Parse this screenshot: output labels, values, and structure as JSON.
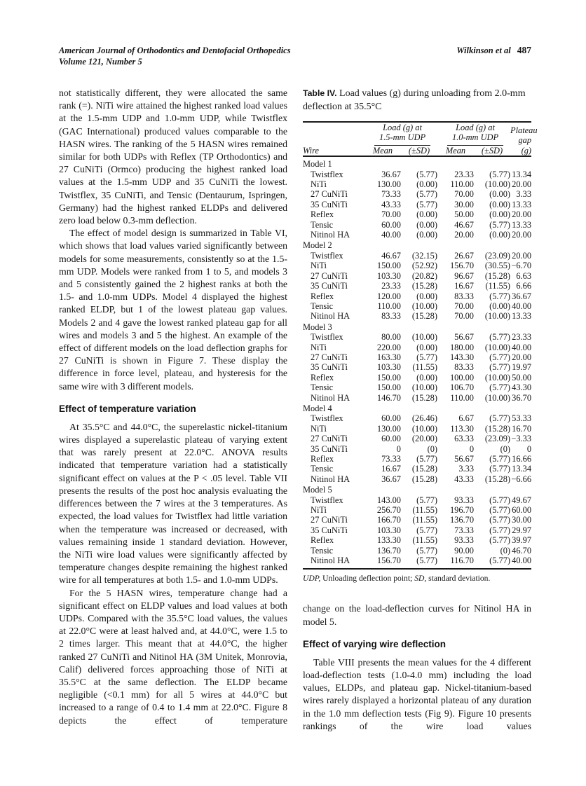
{
  "header": {
    "journal": "American Journal of Orthodontics and Dentofacial Orthopedics",
    "volume": "Volume 121, Number 5",
    "author": "Wilkinson et al",
    "page_number": "487"
  },
  "left_column": {
    "heading": "Effect of temperature variation",
    "paragraphs": [
      {
        "text": "not statistically different, they were allocated the same rank (=). NiTi wire attained the highest ranked load values at the 1.5-mm UDP and 1.0-mm UDP, while Twistflex (GAC International) produced values comparable to the HASN wires. The ranking of the 5 HASN wires remained similar for both UDPs with Reflex (TP Orthodontics) and 27 CuNiTi (Ormco) producing the highest ranked load values at the 1.5-mm UDP and 35 CuNiTi the lowest. Twistflex, 35 CuNiTi, and Tensic (Dentaurum, Ispringen, Germany) had the highest ranked ELDPs and delivered zero load below 0.3-mm deflection."
      },
      {
        "text": "The effect of model design is summarized in Table VI, which shows that load values varied significantly between models for some measurements, consistently so at the 1.5-mm UDP. Models were ranked from 1 to 5, and models 3 and 5 consistently gained the 2 highest ranks at both the 1.5- and 1.0-mm UDPs. Model 4 displayed the highest ranked ELDP, but 1 of the lowest plateau gap values. Models 2 and 4 gave the lowest ranked plateau gap for all wires and models 3 and 5 the highest. An example of the effect of different models on the load deflection graphs for 27 CuNiTi is shown in Figure 7. These display the difference in force level, plateau, and hysteresis for the same wire with 3 different models."
      },
      {
        "text": "At 35.5°C and 44.0°C, the superelastic nickel-titanium wires displayed a superelastic plateau of varying extent that was rarely present at 22.0°C. ANOVA results indicated that temperature variation had a statistically significant effect on values at the P < .05 level. Table VII presents the results of the post hoc analysis evaluating the differences between the 7 wires at the 3 temperatures. As expected, the load values for Twistflex had little variation when the temperature was increased or decreased, with values remaining inside 1 standard deviation. However, the NiTi wire load values were significantly affected by temperature changes despite remaining the highest ranked wire for all temperatures at both 1.5- and 1.0-mm UDPs."
      },
      {
        "text": "For the 5 HASN wires, temperature change had a significant effect on ELDP values and load values at both UDPs. Compared with the 35.5°C load values, the values at 22.0°C were at least halved and, at 44.0°C, were 1.5 to 2 times larger. This meant that at 44.0°C, the higher ranked 27 CuNiTi and Nitinol HA (3M Unitek, Monrovia, Calif) delivered forces approaching those of NiTi at 35.5°C at the same deflection. The ELDP became negligible (<0.1 mm) for all 5 wires at 44.0°C but increased to a range of 0.4 to 1.4 mm at 22.0°C. Figure 8 depicts the effect of temperature"
      }
    ]
  },
  "right_column": {
    "heading": "Effect of varying wire deflection",
    "paragraphs": [
      {
        "text": "change on the load-deflection curves for Nitinol HA in model 5."
      },
      {
        "text": "Table VIII presents the mean values for the 4 different load-deflection tests (1.0-4.0 mm) including the load values, ELDPs, and plateau gap. Nickel-titanium-based wires rarely displayed a horizontal plateau of any duration in the 1.0 mm deflection tests (Fig 9). Figure 10 presents rankings of the wire load values"
      }
    ]
  },
  "table": {
    "label": "Table IV.",
    "title": "Load values (g) during unloading from 2.0-mm deflection at 35.5°C",
    "col_headers": {
      "wire": "Wire",
      "span_15": "Load (g) at\n1.5-mm UDP",
      "span_10": "Load (g) at\n1.0-mm UDP",
      "mean": "Mean",
      "sd": "(±SD)",
      "plateau": "Plateau\ngap (g)"
    },
    "models": [
      {
        "name": "Model 1",
        "rows": [
          [
            "Twistflex",
            "36.67",
            "(5.77)",
            "23.33",
            "(5.77)",
            "13.34"
          ],
          [
            "NiTi",
            "130.00",
            "(0.00)",
            "110.00",
            "(10.00)",
            "20.00"
          ],
          [
            "27 CuNiTi",
            "73.33",
            "(5.77)",
            "70.00",
            "(0.00)",
            "3.33"
          ],
          [
            "35 CuNiTi",
            "43.33",
            "(5.77)",
            "30.00",
            "(0.00)",
            "13.33"
          ],
          [
            "Reflex",
            "70.00",
            "(0.00)",
            "50.00",
            "(0.00)",
            "20.00"
          ],
          [
            "Tensic",
            "60.00",
            "(0.00)",
            "46.67",
            "(5.77)",
            "13.33"
          ],
          [
            "Nitinol HA",
            "40.00",
            "(0.00)",
            "20.00",
            "(0.00)",
            "20.00"
          ]
        ]
      },
      {
        "name": "Model 2",
        "rows": [
          [
            "Twistflex",
            "46.67",
            "(32.15)",
            "26.67",
            "(23.09)",
            "20.00"
          ],
          [
            "NiTi",
            "150.00",
            "(52.92)",
            "156.70",
            "(30.55)",
            "−6.70"
          ],
          [
            "27 CuNiTi",
            "103.30",
            "(20.82)",
            "96.67",
            "(15.28)",
            "6.63"
          ],
          [
            "35 CuNiTi",
            "23.33",
            "(15.28)",
            "16.67",
            "(11.55)",
            "6.66"
          ],
          [
            "Reflex",
            "120.00",
            "(0.00)",
            "83.33",
            "(5.77)",
            "36.67"
          ],
          [
            "Tensic",
            "110.00",
            "(10.00)",
            "70.00",
            "(0.00)",
            "40.00"
          ],
          [
            "Nitinol HA",
            "83.33",
            "(15.28)",
            "70.00",
            "(10.00)",
            "13.33"
          ]
        ]
      },
      {
        "name": "Model 3",
        "rows": [
          [
            "Twistflex",
            "80.00",
            "(10.00)",
            "56.67",
            "(5.77)",
            "23.33"
          ],
          [
            "NiTi",
            "220.00",
            "(0.00)",
            "180.00",
            "(10.00)",
            "40.00"
          ],
          [
            "27 CuNiTi",
            "163.30",
            "(5.77)",
            "143.30",
            "(5.77)",
            "20.00"
          ],
          [
            "35 CuNiTi",
            "103.30",
            "(11.55)",
            "83.33",
            "(5.77)",
            "19.97"
          ],
          [
            "Reflex",
            "150.00",
            "(0.00)",
            "100.00",
            "(10.00)",
            "50.00"
          ],
          [
            "Tensic",
            "150.00",
            "(10.00)",
            "106.70",
            "(5.77)",
            "43.30"
          ],
          [
            "Nitinol HA",
            "146.70",
            "(15.28)",
            "110.00",
            "(10.00)",
            "36.70"
          ]
        ]
      },
      {
        "name": "Model 4",
        "rows": [
          [
            "Twistflex",
            "60.00",
            "(26.46)",
            "6.67",
            "(5.77)",
            "53.33"
          ],
          [
            "NiTi",
            "130.00",
            "(10.00)",
            "113.30",
            "(15.28)",
            "16.70"
          ],
          [
            "27 CuNiTi",
            "60.00",
            "(20.00)",
            "63.33",
            "(23.09)",
            "−3.33"
          ],
          [
            "35 CuNiTi",
            "0",
            "(0)",
            "0",
            "(0)",
            "0"
          ],
          [
            "Reflex",
            "73.33",
            "(5.77)",
            "56.67",
            "(5.77)",
            "16.66"
          ],
          [
            "Tensic",
            "16.67",
            "(15.28)",
            "3.33",
            "(5.77)",
            "13.34"
          ],
          [
            "Nitinol HA",
            "36.67",
            "(15.28)",
            "43.33",
            "(15.28)",
            "−6.66"
          ]
        ]
      },
      {
        "name": "Model 5",
        "rows": [
          [
            "Twistflex",
            "143.00",
            "(5.77)",
            "93.33",
            "(5.77)",
            "49.67"
          ],
          [
            "NiTi",
            "256.70",
            "(11.55)",
            "196.70",
            "(5.77)",
            "60.00"
          ],
          [
            "27 CuNiTi",
            "166.70",
            "(11.55)",
            "136.70",
            "(5.77)",
            "30.00"
          ],
          [
            "35 CuNiTi",
            "103.30",
            "(5.77)",
            "73.33",
            "(5.77)",
            "29.97"
          ],
          [
            "Reflex",
            "133.30",
            "(11.55)",
            "93.33",
            "(5.77)",
            "39.97"
          ],
          [
            "Tensic",
            "136.70",
            "(5.77)",
            "90.00",
            "(0)",
            "46.70"
          ],
          [
            "Nitinol HA",
            "156.70",
            "(5.77)",
            "116.70",
            "(5.77)",
            "40.00"
          ]
        ]
      }
    ],
    "footnote": {
      "t1": "UDP,",
      "t2": " Unloading deflection point; ",
      "t3": "SD,",
      "t4": " standard deviation."
    }
  }
}
